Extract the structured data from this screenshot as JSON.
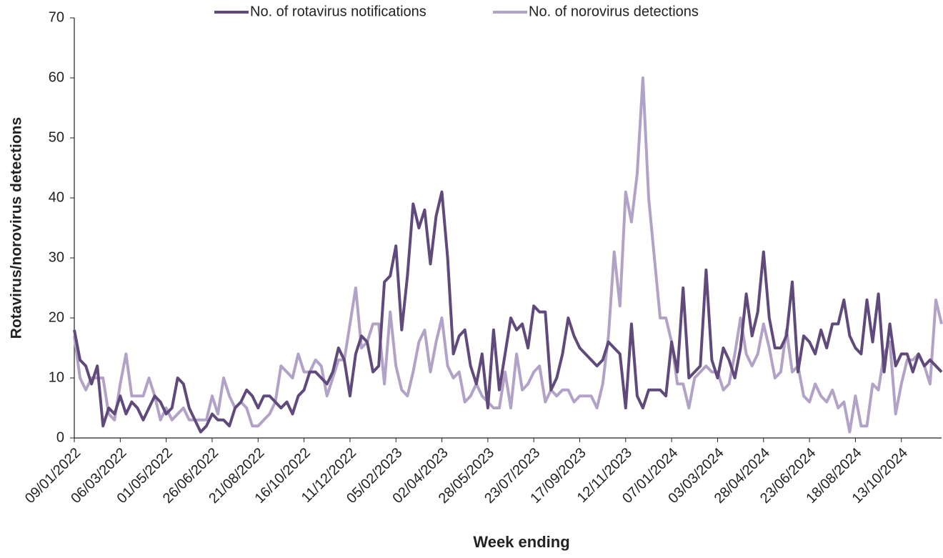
{
  "chart_data": {
    "type": "line",
    "x_label": "Week ending",
    "y_label": "Rotavirus/norovirus detections",
    "categories": [
      "09/01/2022",
      null,
      null,
      null,
      null,
      null,
      null,
      null,
      "06/03/2022",
      null,
      null,
      null,
      null,
      null,
      null,
      null,
      "01/05/2022",
      null,
      null,
      null,
      null,
      null,
      null,
      null,
      "26/06/2022",
      null,
      null,
      null,
      null,
      null,
      null,
      null,
      "21/08/2022",
      null,
      null,
      null,
      null,
      null,
      null,
      null,
      "16/10/2022",
      null,
      null,
      null,
      null,
      null,
      null,
      null,
      "11/12/2022",
      null,
      null,
      null,
      null,
      null,
      null,
      null,
      "05/02/2023",
      null,
      null,
      null,
      null,
      null,
      null,
      null,
      "02/04/2023",
      null,
      null,
      null,
      null,
      null,
      null,
      null,
      "28/05/2023",
      null,
      null,
      null,
      null,
      null,
      null,
      null,
      "23/07/2023",
      null,
      null,
      null,
      null,
      null,
      null,
      null,
      "17/09/2023",
      null,
      null,
      null,
      null,
      null,
      null,
      null,
      "12/11/2023",
      null,
      null,
      null,
      null,
      null,
      null,
      null,
      "07/01/2024",
      null,
      null,
      null,
      null,
      null,
      null,
      null,
      "03/03/2024",
      null,
      null,
      null,
      null,
      null,
      null,
      null,
      "28/04/2024",
      null,
      null,
      null,
      null,
      null,
      null,
      null,
      "23/06/2024",
      null,
      null,
      null,
      null,
      null,
      null,
      null,
      "18/08/2024",
      null,
      null,
      null,
      null,
      null,
      null,
      null,
      "13/10/2024",
      null,
      null,
      null,
      null,
      null,
      null,
      null
    ],
    "series": [
      {
        "name": "No. of rotavirus notifications",
        "color": "#604a7b",
        "values": [
          18,
          13,
          12,
          9,
          12,
          2,
          5,
          4,
          7,
          4,
          6,
          5,
          3,
          5,
          7,
          6,
          4,
          5,
          10,
          9,
          5,
          3,
          1,
          2,
          4,
          3,
          3,
          2,
          5,
          6,
          8,
          7,
          5,
          7,
          7,
          6,
          5,
          6,
          4,
          7,
          8,
          11,
          11,
          10,
          9,
          11,
          15,
          13,
          7,
          14,
          17,
          16,
          11,
          12,
          26,
          27,
          32,
          18,
          27,
          39,
          35,
          38,
          29,
          37,
          41,
          30,
          14,
          17,
          18,
          12,
          9,
          14,
          5,
          18,
          8,
          14,
          20,
          18,
          19,
          15,
          22,
          21,
          21,
          8,
          10,
          14,
          20,
          17,
          15,
          14,
          13,
          12,
          13,
          16,
          15,
          14,
          5,
          19,
          7,
          5,
          8,
          8,
          8,
          7,
          16,
          11,
          25,
          10,
          11,
          12,
          28,
          13,
          10,
          15,
          13,
          10,
          15,
          24,
          17,
          21,
          31,
          20,
          15,
          15,
          17,
          26,
          11,
          17,
          16,
          14,
          18,
          15,
          19,
          19,
          23,
          17,
          15,
          14,
          23,
          16,
          24,
          11,
          19,
          12,
          14,
          14,
          11,
          14,
          12,
          13,
          12,
          11
        ]
      },
      {
        "name": "No. of norovirus detections",
        "color": "#b3a2c7",
        "values": [
          17,
          10,
          8,
          10,
          10,
          10,
          4,
          3,
          9,
          14,
          7,
          7,
          7,
          10,
          7,
          3,
          5,
          3,
          4,
          5,
          3,
          3,
          3,
          3,
          7,
          4,
          10,
          7,
          5,
          6,
          5,
          2,
          2,
          3,
          4,
          6,
          12,
          11,
          10,
          14,
          11,
          11,
          13,
          12,
          7,
          10,
          13,
          13,
          19,
          25,
          15,
          16,
          19,
          19,
          9,
          21,
          12,
          8,
          7,
          11,
          16,
          18,
          11,
          16,
          20,
          12,
          10,
          11,
          6,
          7,
          9,
          7,
          6,
          5,
          5,
          11,
          5,
          14,
          8,
          9,
          11,
          12,
          6,
          8,
          7,
          8,
          8,
          6,
          7,
          7,
          7,
          5,
          9,
          17,
          31,
          22,
          41,
          36,
          44,
          60,
          40,
          30,
          20,
          20,
          16,
          9,
          9,
          5,
          10,
          11,
          12,
          11,
          11,
          8,
          9,
          14,
          20,
          14,
          12,
          14,
          19,
          15,
          10,
          11,
          18,
          11,
          12,
          7,
          6,
          9,
          7,
          6,
          8,
          5,
          6,
          1,
          7,
          2,
          2,
          9,
          8,
          14,
          16,
          4,
          9,
          13,
          13,
          14,
          12,
          9,
          23,
          19
        ]
      }
    ],
    "ylim": [
      0,
      70
    ],
    "yticks": [
      0,
      10,
      20,
      30,
      40,
      50,
      60,
      70
    ],
    "legend": "top"
  }
}
